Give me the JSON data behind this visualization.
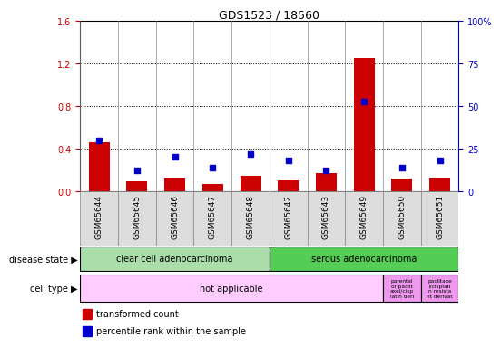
{
  "title": "GDS1523 / 18560",
  "samples": [
    "GSM65644",
    "GSM65645",
    "GSM65646",
    "GSM65647",
    "GSM65648",
    "GSM65642",
    "GSM65643",
    "GSM65649",
    "GSM65650",
    "GSM65651"
  ],
  "transformed_count": [
    0.46,
    0.09,
    0.13,
    0.07,
    0.14,
    0.1,
    0.17,
    1.25,
    0.12,
    0.13
  ],
  "percentile_rank": [
    30,
    12,
    20,
    14,
    22,
    18,
    12,
    53,
    14,
    18
  ],
  "ylim_left": [
    0,
    1.6
  ],
  "ylim_right": [
    0,
    100
  ],
  "yticks_left": [
    0,
    0.4,
    0.8,
    1.2,
    1.6
  ],
  "yticks_right": [
    0,
    25,
    50,
    75,
    100
  ],
  "bar_color": "#cc0000",
  "marker_color": "#0000cc",
  "disease_state_labels": [
    "clear cell adenocarcinoma",
    "serous adenocarcinoma"
  ],
  "cell_type_label_main": "not applicable",
  "cell_type_label_extra1": "parental\nof paclit\naxel/cisp\nlatin deri",
  "cell_type_label_extra2": "paclitaxe\nl/cisplati\nn resista\nnt derivat",
  "disease_state_color_light": "#aaddaa",
  "disease_state_color_medium": "#55cc55",
  "cell_type_color": "#ffccff",
  "cell_type_color_extra": "#ee99ee",
  "xlabel_disease": "disease state",
  "xlabel_cell": "cell type",
  "legend_bar": "transformed count",
  "legend_marker": "percentile rank within the sample",
  "bg_color": "#ffffff",
  "tick_label_color_left": "#cc0000",
  "tick_label_color_right": "#0000cc",
  "col_border_color": "#888888",
  "sample_bg_color": "#dddddd"
}
